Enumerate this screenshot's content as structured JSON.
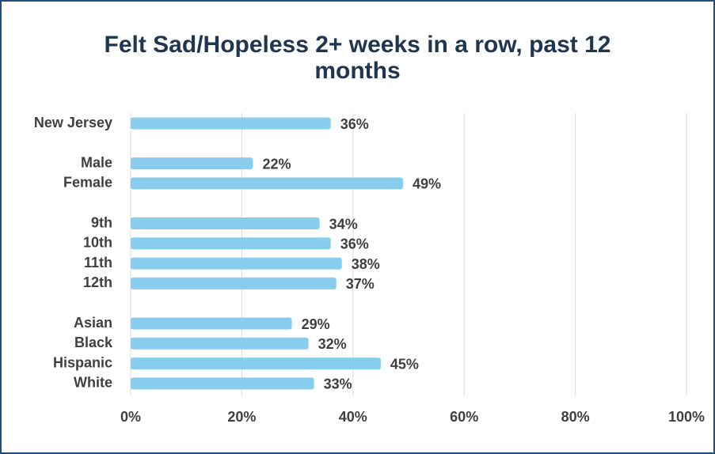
{
  "chart_data": {
    "type": "bar",
    "orientation": "horizontal",
    "title": "Felt Sad/Hopeless 2+ weeks in a row, past 12 months",
    "categories": [
      "New Jersey",
      null,
      "Male",
      "Female",
      null,
      "9th",
      "10th",
      "11th",
      "12th",
      null,
      "Asian",
      "Black",
      "Hispanic",
      "White"
    ],
    "values": [
      36,
      null,
      22,
      49,
      null,
      34,
      36,
      38,
      37,
      null,
      29,
      32,
      45,
      33
    ],
    "value_labels": [
      "36%",
      null,
      "22%",
      "49%",
      null,
      "34%",
      "36%",
      "38%",
      "37%",
      null,
      "29%",
      "32%",
      "45%",
      "33%"
    ],
    "color": "#89cdee",
    "xlim": [
      0,
      100
    ],
    "xticks": [
      {
        "value": 0,
        "label": "0%"
      },
      {
        "value": 20,
        "label": "20%"
      },
      {
        "value": 40,
        "label": "40%"
      },
      {
        "value": 60,
        "label": "60%"
      },
      {
        "value": 80,
        "label": "80%"
      },
      {
        "value": 100,
        "label": "100%"
      }
    ],
    "grid": true
  }
}
